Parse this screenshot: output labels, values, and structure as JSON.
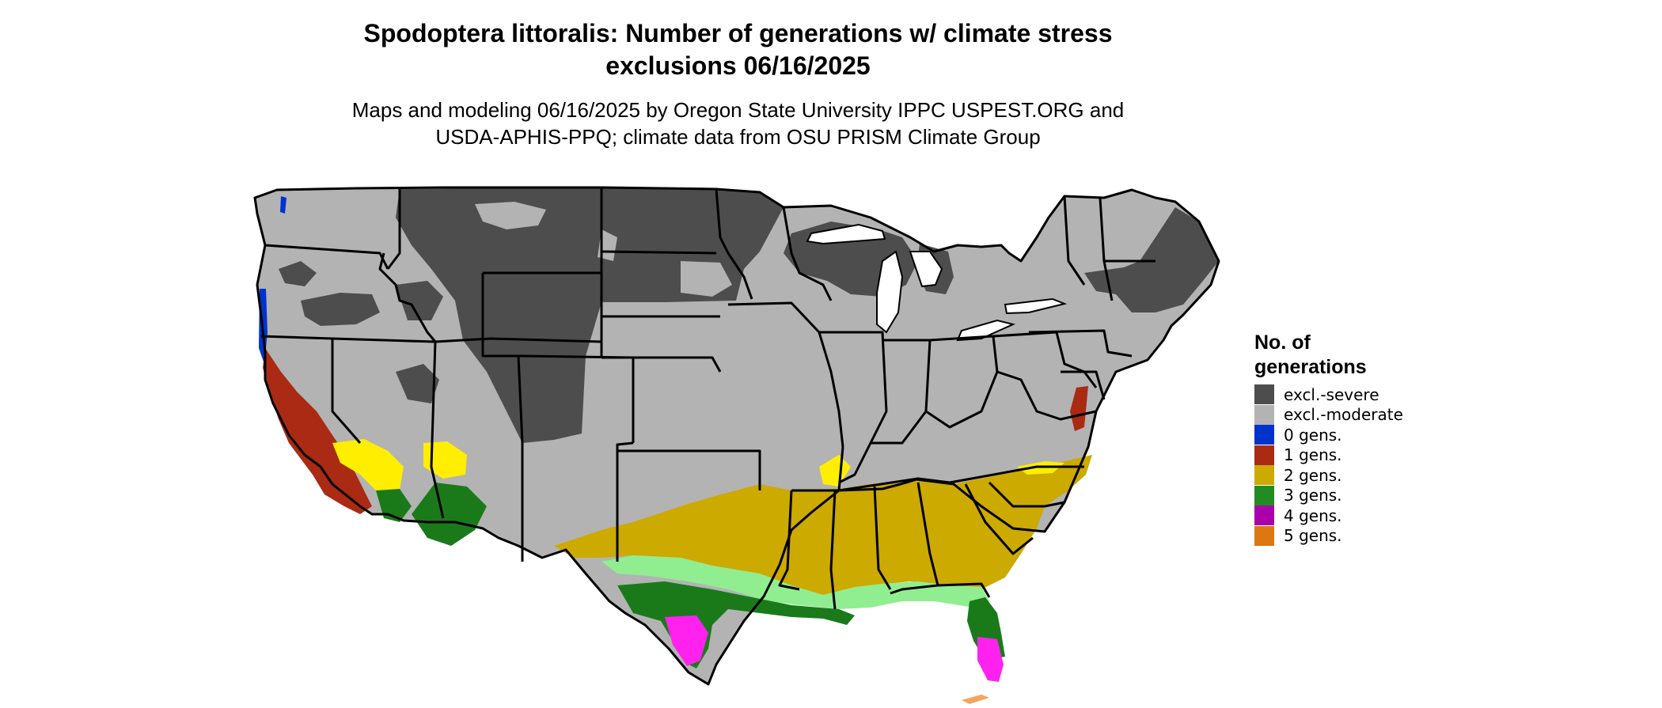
{
  "map": {
    "title_line1": "Spodoptera littoralis: Number of generations w/ climate stress",
    "title_line2": "exclusions 06/16/2025",
    "subtitle_line1": "Maps and modeling 06/16/2025 by Oregon State University IPPC USPEST.ORG and",
    "subtitle_line2": "USDA-APHIS-PPQ; climate data from OSU PRISM Climate Group"
  },
  "legend": {
    "title_line1": "No. of",
    "title_line2": "generations",
    "items": [
      {
        "label": "excl.-severe",
        "color": "#4d4d4d"
      },
      {
        "label": "excl.-moderate",
        "color": "#b3b3b3"
      },
      {
        "label": "0 gens.",
        "color": "#0033cc"
      },
      {
        "label": "1 gens.",
        "color": "#aa2a14"
      },
      {
        "label": "2 gens.",
        "color": "#ccaa00"
      },
      {
        "label": "3 gens.",
        "color": "#228b22"
      },
      {
        "label": "4 gens.",
        "color": "#aa00aa"
      },
      {
        "label": "5 gens.",
        "color": "#dd7711"
      }
    ]
  },
  "colors": {
    "severe": "#4d4d4d",
    "moderate": "#b3b3b3",
    "zero": "#0033cc",
    "one": "#aa2a14",
    "two": "#ccaa00",
    "two_bright": "#ffee00",
    "three": "#1a7a1a",
    "three_light": "#90ee90",
    "four": "#ff22ee",
    "five": "#f4a460"
  }
}
